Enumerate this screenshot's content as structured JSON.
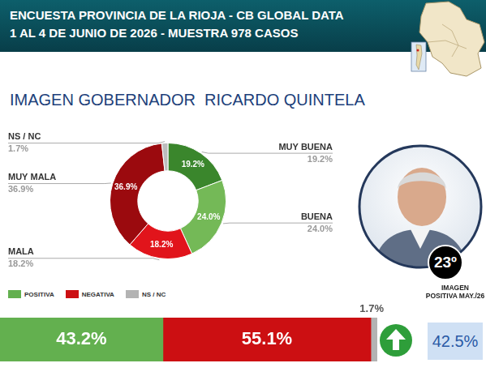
{
  "header": {
    "lines": [
      "ENCUESTA PROVINCIA DE LA RIOJA - CB GLOBAL DATA",
      "1 AL 4 DE JUNIO DE 2026 - MUESTRA 978 CASOS"
    ]
  },
  "ranking": "23º",
  "comparison": {
    "label": "IMAGEN POSITIVA MAY./26",
    "value": 42.5,
    "value_label": "42.5%"
  },
  "chart_data": [
    {
      "type": "doughnut",
      "title": "IMAGEN GOBERNADOR  RICARDO QUINTELA",
      "categories": [
        "MUY BUENA",
        "BUENA",
        "MALA",
        "MUY MALA",
        "NS / NC"
      ],
      "values": [
        19.2,
        24.0,
        18.2,
        36.9,
        1.7
      ],
      "value_labels": [
        "19.2%",
        "24.0%",
        "18.2%",
        "36.9%",
        "1.7%"
      ],
      "colors": [
        "#3a862c",
        "#74b957",
        "#e1141b",
        "#9b0a0e",
        "#bdbdbd"
      ],
      "data_labels": true
    },
    {
      "type": "bar",
      "orientation": "horizontal",
      "stacked": true,
      "categories": [
        null
      ],
      "series": [
        {
          "name": "POSITIVA",
          "color": "#63b04f",
          "values": [
            43.2
          ],
          "value_labels": [
            "43.2%"
          ]
        },
        {
          "name": "NEGATIVA",
          "color": "#cc0f12",
          "values": [
            55.1
          ],
          "value_labels": [
            "55.1%"
          ]
        },
        {
          "name": "NS / NC",
          "color": "#b3b3b3",
          "values": [
            1.7
          ],
          "value_labels": [
            "1.7%"
          ]
        }
      ],
      "xlim": [
        0,
        100
      ],
      "tick_labels": false,
      "legend": "top left",
      "data_labels": true
    }
  ]
}
